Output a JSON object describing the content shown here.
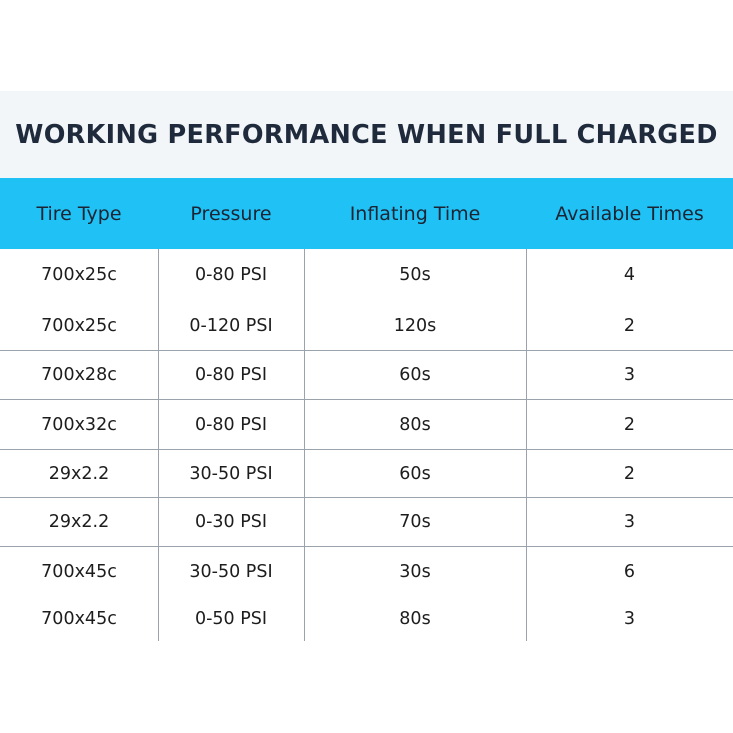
{
  "title": "WORKING PERFORMANCE WHEN FULL CHARGED",
  "headers": [
    "Tire Type",
    "Pressure",
    "Inflating Time",
    "Available Times"
  ],
  "rows": [
    [
      "700x25c",
      "0-80 PSI",
      "50s",
      "4"
    ],
    [
      "700x25c",
      "0-120 PSI",
      "120s",
      "2"
    ],
    [
      "700x28c",
      "0-80 PSI",
      "60s",
      "3"
    ],
    [
      "700x32c",
      "0-80 PSI",
      "80s",
      "2"
    ],
    [
      "29x2.2",
      "30-50 PSI",
      "60s",
      "2"
    ],
    [
      "29x2.2",
      "0-30 PSI",
      "70s",
      "3"
    ],
    [
      "700x45c",
      "30-50 PSI",
      "30s",
      "6"
    ],
    [
      "700x45c",
      "0-50 PSI",
      "80s",
      "3"
    ]
  ],
  "colors": {
    "header_bg": "#20c1f4",
    "title_band_bg": "#f3f6f8",
    "title_text": "#1f2b3c",
    "grid_line": "#9aa3ab"
  }
}
